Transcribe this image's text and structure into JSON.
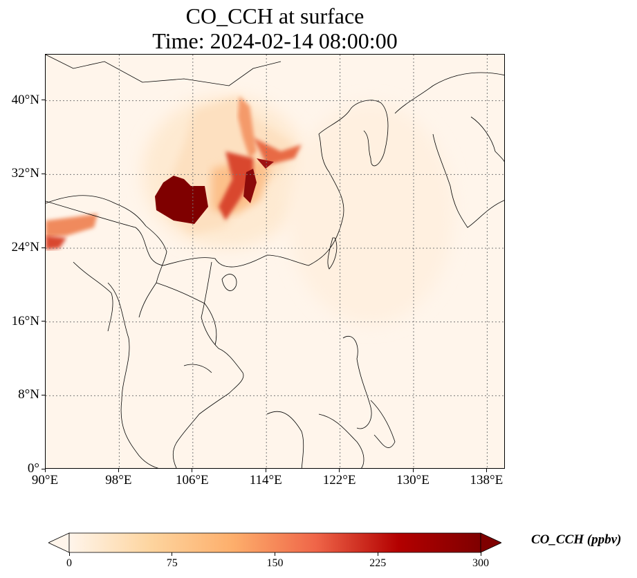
{
  "title": {
    "line1": "CO_CCH at surface",
    "line2": "Time: 2024-02-14 08:00:00"
  },
  "map": {
    "lon_range": [
      90,
      140
    ],
    "lat_range": [
      0,
      45
    ],
    "lon_ticks": [
      "90°E",
      "98°E",
      "106°E",
      "114°E",
      "122°E",
      "130°E",
      "138°E"
    ],
    "lat_ticks": [
      "0°",
      "8°N",
      "16°N",
      "24°N",
      "32°N",
      "40°N"
    ],
    "gridlines": true,
    "background_color": "#fff5eb",
    "hotspot_color": "#7f0000"
  },
  "colorbar": {
    "label": "CO_CCH (ppbv)",
    "ticks": [
      "0",
      "75",
      "150",
      "225",
      "300"
    ],
    "min": 0,
    "max": 300,
    "extend": "both",
    "colormap": "OrRd",
    "colors": [
      "#fff5eb",
      "#fdd49e",
      "#fdae6b",
      "#ef6548",
      "#b30000",
      "#7f0000"
    ]
  }
}
